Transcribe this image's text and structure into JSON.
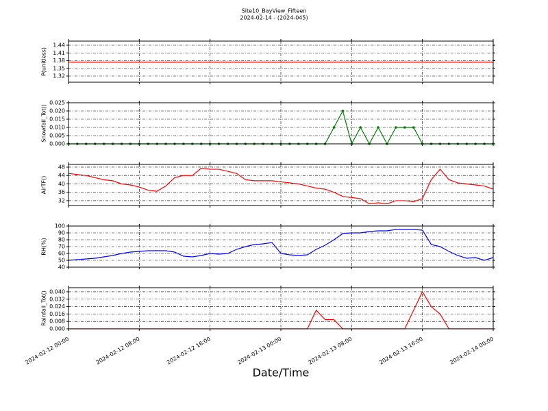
{
  "figure": {
    "title": "Site10_BayView_Fifteen",
    "subtitle": "2024-02-14 - (2024-045)",
    "xlabel": "Date/Time",
    "x": [
      "2024-02-12 00:00",
      "2024-02-12 01:00",
      "2024-02-12 02:00",
      "2024-02-12 03:00",
      "2024-02-12 04:00",
      "2024-02-12 05:00",
      "2024-02-12 06:00",
      "2024-02-12 07:00",
      "2024-02-12 08:00",
      "2024-02-12 09:00",
      "2024-02-12 10:00",
      "2024-02-12 11:00",
      "2024-02-12 12:00",
      "2024-02-12 13:00",
      "2024-02-12 14:00",
      "2024-02-12 15:00",
      "2024-02-12 16:00",
      "2024-02-12 17:00",
      "2024-02-12 18:00",
      "2024-02-12 19:00",
      "2024-02-12 20:00",
      "2024-02-12 21:00",
      "2024-02-12 22:00",
      "2024-02-12 23:00",
      "2024-02-13 00:00",
      "2024-02-13 01:00",
      "2024-02-13 02:00",
      "2024-02-13 03:00",
      "2024-02-13 04:00",
      "2024-02-13 05:00",
      "2024-02-13 06:00",
      "2024-02-13 07:00",
      "2024-02-13 08:00",
      "2024-02-13 09:00",
      "2024-02-13 10:00",
      "2024-02-13 11:00",
      "2024-02-13 12:00",
      "2024-02-13 13:00",
      "2024-02-13 14:00",
      "2024-02-13 15:00",
      "2024-02-13 16:00",
      "2024-02-13 17:00",
      "2024-02-13 18:00",
      "2024-02-13 19:00",
      "2024-02-13 20:00",
      "2024-02-13 21:00",
      "2024-02-13 22:00",
      "2024-02-13 23:00",
      "2024-02-14 00:00"
    ],
    "xlim": [
      "2024-02-12 00:00",
      "2024-02-14 00:00"
    ],
    "xticks": [
      "2024-02-12 00:00",
      "2024-02-12 08:00",
      "2024-02-12 16:00",
      "2024-02-13 00:00",
      "2024-02-13 08:00",
      "2024-02-13 16:00",
      "2024-02-14 00:00"
    ]
  },
  "chart_data": [
    {
      "type": "line",
      "ylabel": "P(unitless)",
      "ylim": [
        1.296,
        1.456
      ],
      "yticks": [
        1.32,
        1.35,
        1.38,
        1.41,
        1.44
      ],
      "grid": true,
      "series": [
        {
          "color": "#ff0000",
          "values": [
            1.374,
            1.374,
            1.374,
            1.374,
            1.374,
            1.374,
            1.374,
            1.374,
            1.374,
            1.374,
            1.374,
            1.374,
            1.374,
            1.374,
            1.374,
            1.374,
            1.374,
            1.374,
            1.374,
            1.374,
            1.374,
            1.374,
            1.374,
            1.374,
            1.374,
            1.374,
            1.374,
            1.374,
            1.374,
            1.374,
            1.374,
            1.374,
            1.374,
            1.374,
            1.374,
            1.374,
            1.374,
            1.374,
            1.374,
            1.374,
            1.374,
            1.374,
            1.374,
            1.374,
            1.374,
            1.374,
            1.374,
            1.374,
            1.374
          ]
        }
      ]
    },
    {
      "type": "line",
      "markers": true,
      "ylabel": "Snowfall_Tot()",
      "ylim": [
        0,
        0.025
      ],
      "yticks": [
        {
          "value": 0,
          "label": "0.000"
        },
        0.005,
        {
          "value": 0.01,
          "label": "0.010"
        },
        0.015,
        {
          "value": 0.02,
          "label": "0.020"
        },
        0.025
      ],
      "grid": true,
      "series": [
        {
          "color": "#007f00",
          "values": [
            0,
            0,
            0,
            0,
            0,
            0,
            0,
            0,
            0,
            0,
            0,
            0,
            0,
            0,
            0,
            0,
            0,
            0,
            0,
            0,
            0,
            0,
            0,
            0,
            0,
            0,
            0,
            0,
            0,
            0,
            0.01,
            0.02,
            0,
            0.01,
            0,
            0.01,
            0,
            0.01,
            0.01,
            0.01,
            0,
            0,
            0,
            0,
            0,
            0,
            0,
            0,
            0
          ]
        }
      ]
    },
    {
      "type": "line",
      "ylabel": "AirTF()",
      "ylim": [
        29.7,
        49.3
      ],
      "yticks": [
        32,
        36,
        40,
        44,
        48
      ],
      "grid": true,
      "series": [
        {
          "color": "#ff0000",
          "values": [
            45,
            44.5,
            44,
            43,
            42,
            41.5,
            40,
            39.5,
            38.5,
            37,
            36.5,
            39,
            43,
            44,
            44,
            47.5,
            47,
            47,
            46,
            45,
            42,
            41.5,
            41.5,
            41.5,
            41,
            40.5,
            40,
            39,
            38,
            37.5,
            36,
            34,
            33.5,
            33,
            30.5,
            31,
            30.5,
            32,
            32,
            31.5,
            33,
            42,
            47,
            42,
            40.5,
            40,
            39.5,
            39,
            37.5
          ]
        }
      ]
    },
    {
      "type": "line",
      "ylabel": "RH(%)",
      "ylim": [
        40,
        100
      ],
      "yticks": [
        40,
        50,
        60,
        70,
        80,
        90,
        100
      ],
      "grid": true,
      "series": [
        {
          "color": "#0000ff",
          "values": [
            50,
            51,
            52,
            53,
            55,
            57,
            60,
            62,
            63,
            64,
            64,
            64,
            62,
            56,
            55,
            57,
            60,
            59,
            60,
            66,
            70,
            73,
            74,
            76,
            60,
            58,
            57,
            58,
            66,
            72,
            80,
            89,
            90,
            90,
            92,
            93,
            93,
            95,
            95,
            95,
            94,
            73,
            70,
            63,
            57,
            53,
            54,
            50,
            54
          ]
        }
      ]
    },
    {
      "type": "line",
      "ylabel": "Rainfall_Tot()",
      "ylim": [
        0,
        0.0444
      ],
      "yticks": [
        {
          "value": 0,
          "label": "0.000"
        },
        0.008,
        0.016,
        0.024,
        0.032,
        {
          "value": 0.04,
          "label": "0.040"
        }
      ],
      "grid": true,
      "series": [
        {
          "color": "#ff0000",
          "values": [
            0,
            0,
            0,
            0,
            0,
            0,
            0,
            0,
            0,
            0,
            0,
            0,
            0,
            0,
            0,
            0,
            0,
            0,
            0,
            0,
            0,
            0,
            0,
            0,
            0,
            0,
            0,
            0,
            0.02,
            0.01,
            0.01,
            0,
            0,
            0,
            0,
            0,
            0,
            0,
            0,
            0.02,
            0.04,
            0.024,
            0.016,
            0,
            0,
            0,
            0,
            0,
            0
          ]
        }
      ]
    }
  ]
}
